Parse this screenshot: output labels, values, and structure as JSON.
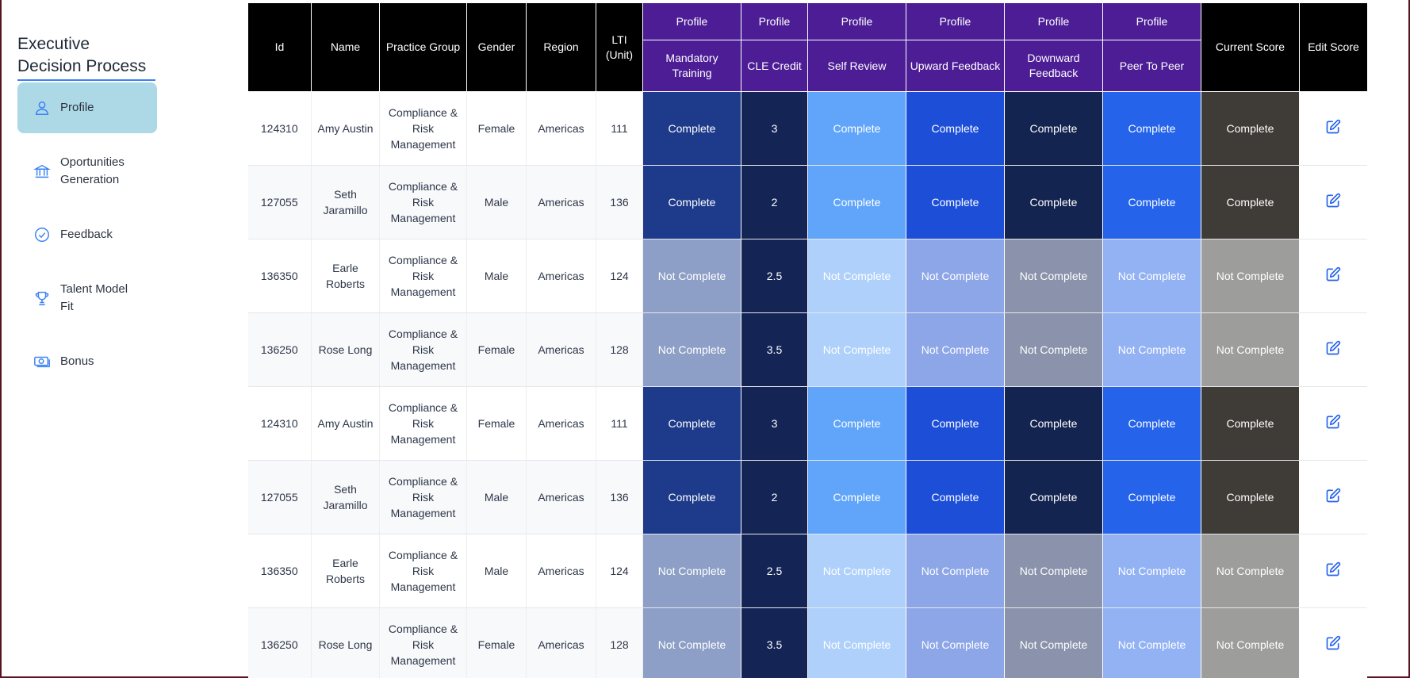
{
  "app": {
    "title": "Executive Decision Process"
  },
  "sidebar": {
    "items": [
      {
        "label": "Profile",
        "icon": "user-icon",
        "active": true
      },
      {
        "label": "Oportunities Generation",
        "icon": "bank-icon",
        "active": false
      },
      {
        "label": "Feedback",
        "icon": "check-badge-icon",
        "active": false
      },
      {
        "label": "Talent Model Fit",
        "icon": "trophy-icon",
        "active": false
      },
      {
        "label": "Bonus",
        "icon": "money-icon",
        "active": false
      }
    ]
  },
  "table": {
    "columns": {
      "id": "Id",
      "name": "Name",
      "practice_group": "Practice Group",
      "gender": "Gender",
      "region": "Region",
      "lti": "LTI (Unit)",
      "group_label": "Profile",
      "mandatory_training": "Mandatory Training",
      "cle_credit": "CLE Credit",
      "self_review": "Self Review",
      "upward_feedback": "Upward Feedback",
      "downward_feedback": "Downward Feedback",
      "peer_to_peer": "Peer To Peer",
      "current_score": "Current Score",
      "edit_score": "Edit Score"
    },
    "status_labels": {
      "complete": "Complete",
      "not_complete": "Not Complete"
    },
    "colors": {
      "header_black": "#000000",
      "header_purple": "#4c1d95",
      "active_nav": "#add8e6",
      "accent": "#3b82f6"
    },
    "rows": [
      {
        "id": "124310",
        "name": "Amy Austin",
        "practice_group": "Compliance & Risk Management",
        "gender": "Female",
        "region": "Americas",
        "lti": "111",
        "cle_credit": "3",
        "complete": true
      },
      {
        "id": "127055",
        "name": "Seth Jaramillo",
        "practice_group": "Compliance & Risk Management",
        "gender": "Male",
        "region": "Americas",
        "lti": "136",
        "cle_credit": "2",
        "complete": true
      },
      {
        "id": "136350",
        "name": "Earle Roberts",
        "practice_group": "Compliance & Risk Management",
        "gender": "Male",
        "region": "Americas",
        "lti": "124",
        "cle_credit": "2.5",
        "complete": false
      },
      {
        "id": "136250",
        "name": "Rose Long",
        "practice_group": "Compliance & Risk Management",
        "gender": "Female",
        "region": "Americas",
        "lti": "128",
        "cle_credit": "3.5",
        "complete": false
      },
      {
        "id": "124310",
        "name": "Amy Austin",
        "practice_group": "Compliance & Risk Management",
        "gender": "Female",
        "region": "Americas",
        "lti": "111",
        "cle_credit": "3",
        "complete": true
      },
      {
        "id": "127055",
        "name": "Seth Jaramillo",
        "practice_group": "Compliance & Risk Management",
        "gender": "Male",
        "region": "Americas",
        "lti": "136",
        "cle_credit": "2",
        "complete": true
      },
      {
        "id": "136350",
        "name": "Earle Roberts",
        "practice_group": "Compliance & Risk Management",
        "gender": "Male",
        "region": "Americas",
        "lti": "124",
        "cle_credit": "2.5",
        "complete": false
      },
      {
        "id": "136250",
        "name": "Rose Long",
        "practice_group": "Compliance & Risk Management",
        "gender": "Female",
        "region": "Americas",
        "lti": "128",
        "cle_credit": "3.5",
        "complete": false
      }
    ]
  }
}
